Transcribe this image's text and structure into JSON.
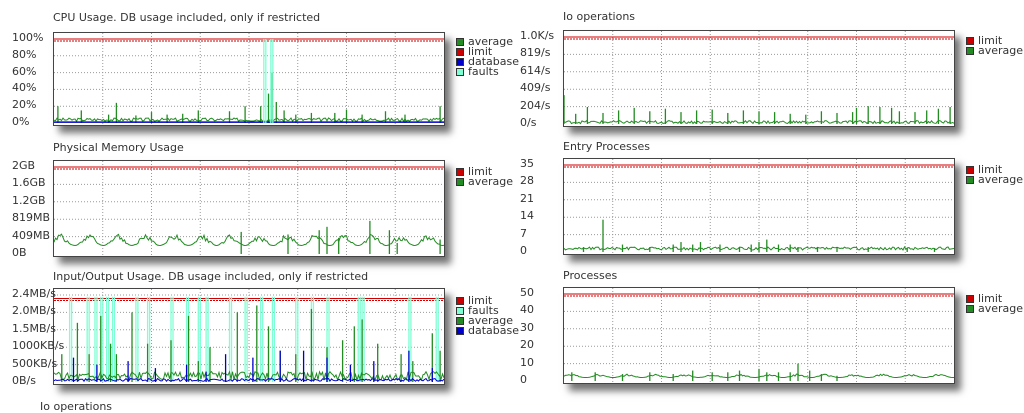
{
  "chart_data": [
    {
      "id": "cpu",
      "type": "line",
      "title": "CPU Usage. DB usage included, only if restricted",
      "yticks": [
        "100%",
        "80%",
        "60%",
        "40%",
        "20%",
        "0%"
      ],
      "ylim": [
        0,
        100
      ],
      "limit": 100,
      "grid": true,
      "legend_position": "right",
      "series": [
        {
          "name": "average",
          "color": "#228B22",
          "kind": "spikes",
          "base": 2,
          "max": 6,
          "spikes": [
            [
              0.01,
              20
            ],
            [
              0.07,
              15
            ],
            [
              0.14,
              10
            ],
            [
              0.16,
              24
            ],
            [
              0.21,
              9
            ],
            [
              0.25,
              13
            ],
            [
              0.29,
              10
            ],
            [
              0.33,
              11
            ],
            [
              0.37,
              15
            ],
            [
              0.45,
              14
            ],
            [
              0.49,
              20
            ],
            [
              0.53,
              20
            ],
            [
              0.55,
              35
            ],
            [
              0.56,
              60
            ],
            [
              0.57,
              25
            ],
            [
              0.59,
              15
            ],
            [
              0.62,
              10
            ],
            [
              0.66,
              12
            ],
            [
              0.72,
              12
            ],
            [
              0.75,
              16
            ],
            [
              0.79,
              10
            ],
            [
              0.85,
              14
            ],
            [
              0.9,
              10
            ],
            [
              0.99,
              20
            ]
          ]
        },
        {
          "name": "limit",
          "color": "#cc0000",
          "kind": "limit"
        },
        {
          "name": "database",
          "color": "#0000cc",
          "kind": "flat",
          "value": 1
        },
        {
          "name": "faults",
          "color": "#7fffd4",
          "kind": "spikes",
          "base": 0,
          "max": 0,
          "spikes": [
            [
              0.538,
              100
            ],
            [
              0.556,
              100
            ]
          ]
        }
      ]
    },
    {
      "id": "io_ops_left",
      "type": "line",
      "title": "Io operations",
      "yticks": [],
      "series": []
    },
    {
      "id": "mem",
      "type": "line",
      "title": "Physical Memory Usage",
      "yticks": [
        "2GB",
        "1.6GB",
        "1.2GB",
        "819MB",
        "409MB",
        "0B"
      ],
      "ylim": [
        0,
        2048
      ],
      "limit": 2048,
      "grid": true,
      "legend_position": "right",
      "series": [
        {
          "name": "limit",
          "color": "#cc0000",
          "kind": "limit"
        },
        {
          "name": "average",
          "color": "#228B22",
          "kind": "wave",
          "base": 200,
          "max": 480,
          "spikes": [
            [
              0.48,
              520
            ],
            [
              0.6,
              460
            ],
            [
              0.68,
              560
            ],
            [
              0.7,
              640
            ],
            [
              0.73,
              380
            ],
            [
              0.81,
              780
            ],
            [
              0.86,
              560
            ],
            [
              0.88,
              260
            ],
            [
              0.99,
              340
            ]
          ]
        }
      ]
    },
    {
      "id": "io",
      "type": "line",
      "title": "Input/Output Usage. DB usage included, only if restricted",
      "yticks": [
        "2.4MB/s",
        "2.0MB/s",
        "1.5MB/s",
        "1000KB/s",
        "500KB/s",
        "0B/s"
      ],
      "ylim": [
        0,
        2.5
      ],
      "limit": 2.4,
      "grid": true,
      "legend_position": "right",
      "series": [
        {
          "name": "limit",
          "color": "#cc0000",
          "kind": "limit"
        },
        {
          "name": "faults",
          "color": "#7fffd4",
          "kind": "spikes",
          "base": 0,
          "max": 0,
          "spikes": [
            [
              0.04,
              2.45
            ],
            [
              0.085,
              2.45
            ],
            [
              0.105,
              2.45
            ],
            [
              0.12,
              2.45
            ],
            [
              0.135,
              2.45
            ],
            [
              0.15,
              2.45
            ],
            [
              0.21,
              2.45
            ],
            [
              0.24,
              2.45
            ],
            [
              0.3,
              2.45
            ],
            [
              0.34,
              2.45
            ],
            [
              0.37,
              2.45
            ],
            [
              0.39,
              2.45
            ],
            [
              0.45,
              2.45
            ],
            [
              0.49,
              2.45
            ],
            [
              0.53,
              2.45
            ],
            [
              0.56,
              2.45
            ],
            [
              0.62,
              2.45
            ],
            [
              0.66,
              2.45
            ],
            [
              0.7,
              2.45
            ],
            [
              0.78,
              2.45
            ],
            [
              0.79,
              2.45
            ],
            [
              0.91,
              2.45
            ],
            [
              0.98,
              2.45
            ]
          ]
        },
        {
          "name": "average",
          "color": "#228B22",
          "kind": "spikes",
          "base": 0.05,
          "max": 0.3,
          "spikes": [
            [
              0.02,
              0.8
            ],
            [
              0.06,
              1.7
            ],
            [
              0.09,
              0.8
            ],
            [
              0.12,
              1.9
            ],
            [
              0.145,
              1.1
            ],
            [
              0.16,
              0.8
            ],
            [
              0.2,
              2.0
            ],
            [
              0.24,
              1.1
            ],
            [
              0.3,
              1.2
            ],
            [
              0.345,
              1.9
            ],
            [
              0.37,
              0.6
            ],
            [
              0.4,
              1.0
            ],
            [
              0.47,
              2.0
            ],
            [
              0.52,
              2.2
            ],
            [
              0.55,
              1.6
            ],
            [
              0.58,
              0.9
            ],
            [
              0.62,
              0.8
            ],
            [
              0.66,
              2.1
            ],
            [
              0.7,
              1.0
            ],
            [
              0.74,
              1.2
            ],
            [
              0.77,
              1.6
            ],
            [
              0.79,
              1.8
            ],
            [
              0.83,
              1.1
            ],
            [
              0.89,
              0.8
            ],
            [
              0.92,
              0.6
            ],
            [
              0.97,
              1.4
            ],
            [
              0.99,
              0.9
            ]
          ]
        },
        {
          "name": "database",
          "color": "#0000cc",
          "kind": "spikes",
          "base": 0.02,
          "max": 0.1,
          "spikes": [
            [
              0.05,
              0.7
            ],
            [
              0.11,
              0.5
            ],
            [
              0.19,
              0.6
            ],
            [
              0.26,
              0.4
            ],
            [
              0.34,
              0.5
            ],
            [
              0.39,
              0.3
            ],
            [
              0.44,
              0.8
            ],
            [
              0.51,
              0.7
            ],
            [
              0.58,
              0.9
            ],
            [
              0.64,
              0.9
            ],
            [
              0.7,
              0.7
            ],
            [
              0.76,
              0.5
            ],
            [
              0.82,
              0.6
            ],
            [
              0.91,
              0.9
            ],
            [
              0.97,
              0.4
            ]
          ]
        }
      ]
    },
    {
      "id": "io_ops_right",
      "type": "line",
      "title": "Io operations",
      "yticks": [
        "1.0K/s",
        "819/s",
        "614/s",
        "409/s",
        "204/s",
        "0/s"
      ],
      "ylim": [
        0,
        1024
      ],
      "limit": 1024,
      "grid": true,
      "legend_position": "right",
      "series": [
        {
          "name": "limit",
          "color": "#cc0000",
          "kind": "limit"
        },
        {
          "name": "average",
          "color": "#228B22",
          "kind": "spikes",
          "base": 5,
          "max": 40,
          "spikes": [
            [
              0.0,
              340
            ],
            [
              0.03,
              120
            ],
            [
              0.06,
              200
            ],
            [
              0.1,
              130
            ],
            [
              0.14,
              160
            ],
            [
              0.18,
              190
            ],
            [
              0.22,
              150
            ],
            [
              0.26,
              180
            ],
            [
              0.3,
              140
            ],
            [
              0.34,
              160
            ],
            [
              0.38,
              170
            ],
            [
              0.42,
              130
            ],
            [
              0.46,
              160
            ],
            [
              0.5,
              150
            ],
            [
              0.54,
              140
            ],
            [
              0.58,
              120
            ],
            [
              0.62,
              110
            ],
            [
              0.66,
              150
            ],
            [
              0.7,
              130
            ],
            [
              0.74,
              140
            ],
            [
              0.75,
              190
            ],
            [
              0.78,
              210
            ],
            [
              0.81,
              200
            ],
            [
              0.84,
              190
            ],
            [
              0.86,
              150
            ],
            [
              0.9,
              140
            ],
            [
              0.93,
              160
            ],
            [
              0.96,
              180
            ],
            [
              0.99,
              200
            ]
          ]
        }
      ]
    },
    {
      "id": "entry",
      "type": "line",
      "title": "Entry Processes",
      "yticks": [
        "35",
        "28",
        "21",
        "14",
        "7",
        "0"
      ],
      "ylim": [
        0,
        35
      ],
      "limit": 35,
      "grid": true,
      "legend_position": "right",
      "series": [
        {
          "name": "limit",
          "color": "#cc0000",
          "kind": "limit"
        },
        {
          "name": "average",
          "color": "#228B22",
          "kind": "spikes",
          "base": 0.8,
          "max": 2,
          "spikes": [
            [
              0.1,
              13
            ],
            [
              0.05,
              2
            ],
            [
              0.15,
              3
            ],
            [
              0.22,
              2
            ],
            [
              0.28,
              3
            ],
            [
              0.3,
              4
            ],
            [
              0.33,
              3
            ],
            [
              0.35,
              4
            ],
            [
              0.4,
              3
            ],
            [
              0.45,
              2
            ],
            [
              0.48,
              3
            ],
            [
              0.5,
              4
            ],
            [
              0.52,
              5
            ],
            [
              0.55,
              3
            ],
            [
              0.58,
              3
            ],
            [
              0.6,
              2
            ],
            [
              0.65,
              2
            ],
            [
              0.7,
              2
            ],
            [
              0.78,
              2
            ],
            [
              0.88,
              1.5
            ],
            [
              0.95,
              1.5
            ]
          ]
        }
      ]
    },
    {
      "id": "processes",
      "type": "line",
      "title": "Processes",
      "yticks": [
        "50",
        "40",
        "30",
        "20",
        "10",
        "0"
      ],
      "ylim": [
        0,
        50
      ],
      "limit": 50,
      "grid": true,
      "legend_position": "right",
      "series": [
        {
          "name": "limit",
          "color": "#cc0000",
          "kind": "limit"
        },
        {
          "name": "average",
          "color": "#228B22",
          "kind": "wave",
          "base": 2,
          "max": 4,
          "spikes": [
            [
              0.02,
              5
            ],
            [
              0.08,
              5
            ],
            [
              0.15,
              4
            ],
            [
              0.22,
              5
            ],
            [
              0.28,
              4
            ],
            [
              0.33,
              6
            ],
            [
              0.38,
              5
            ],
            [
              0.42,
              5
            ],
            [
              0.45,
              6
            ],
            [
              0.5,
              7
            ],
            [
              0.52,
              5
            ],
            [
              0.55,
              5
            ],
            [
              0.58,
              5
            ],
            [
              0.6,
              10
            ],
            [
              0.63,
              6
            ],
            [
              0.66,
              4
            ],
            [
              0.7,
              3
            ]
          ]
        }
      ]
    }
  ]
}
